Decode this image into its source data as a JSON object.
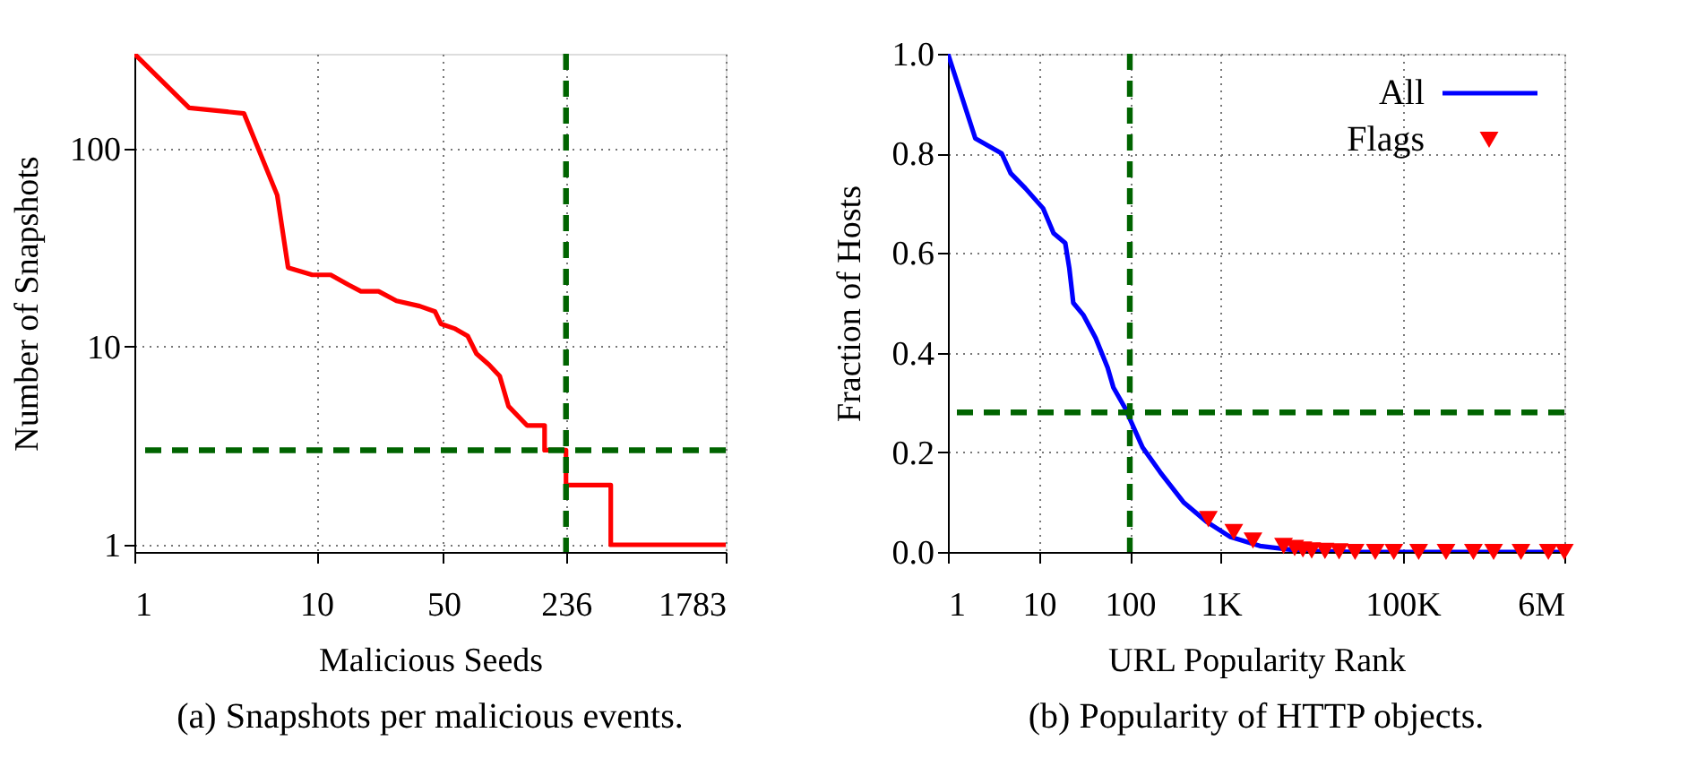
{
  "chart_data": [
    {
      "type": "line",
      "xlabel": "Malicious Seeds",
      "ylabel": "Number of Snapshots",
      "log": "xy",
      "grid": true,
      "xlim": [
        1,
        1783
      ],
      "ylim": [
        0.92,
        300
      ],
      "xticks": [
        1,
        10,
        50,
        236,
        1783
      ],
      "yticks": [
        1,
        10,
        100
      ],
      "series": [
        {
          "color": "#ff0000",
          "x": [
            1,
            2,
            4,
            6.1,
            7,
            9.5,
            12,
            15,
            17.6,
            22,
            27.6,
            37,
            45,
            48.5,
            58,
            68,
            76,
            89,
            102,
            114,
            144,
            180,
            180,
            236,
            236,
            416,
            416,
            1783
          ],
          "values": [
            300,
            160,
            150,
            58,
            25,
            23,
            23,
            20.5,
            19,
            19,
            17,
            16,
            15,
            13,
            12.3,
            11.3,
            9.2,
            8.1,
            7.1,
            5,
            4,
            4,
            3,
            3,
            2,
            2,
            1,
            1
          ]
        }
      ],
      "ref_lines": [
        {
          "axis": "y",
          "value": 3,
          "color": "#006400",
          "line_style": "dashed"
        },
        {
          "axis": "x",
          "value": 236,
          "color": "#006400",
          "line_style": "dashed"
        }
      ],
      "annotations": [
        "(a) Snapshots per malicious events."
      ]
    },
    {
      "type": "line",
      "xlabel": "URL Popularity Rank",
      "ylabel": "Fraction of Hosts",
      "log": "x",
      "grid": true,
      "legend": "top right",
      "xlim": [
        1,
        6000000
      ],
      "ylim": [
        0,
        1
      ],
      "xticks": [
        1,
        10,
        100,
        {
          "value": 1000,
          "label": "1K"
        },
        {
          "value": 100000,
          "label": "100K"
        },
        {
          "value": 6000000,
          "label": "6M"
        }
      ],
      "yticks": [
        {
          "value": 0,
          "label": "0.0"
        },
        {
          "value": 0.2,
          "label": "0.2"
        },
        {
          "value": 0.4,
          "label": "0.4"
        },
        {
          "value": 0.6,
          "label": "0.6"
        },
        {
          "value": 0.8,
          "label": "0.8"
        },
        {
          "value": 1,
          "label": "1.0"
        }
      ],
      "series": [
        {
          "name": "All",
          "color": "#0000ff",
          "x": [
            1,
            2,
            3.9,
            4.9,
            7.1,
            11.1,
            14.5,
            19.5,
            21.6,
            23.9,
            31,
            42,
            57,
            66,
            88,
            138,
            216,
            389,
            708,
            1280,
            2700,
            7600,
            34000,
            6000000
          ],
          "values": [
            1,
            0.83,
            0.8,
            0.76,
            0.73,
            0.69,
            0.64,
            0.62,
            0.57,
            0.5,
            0.475,
            0.43,
            0.37,
            0.33,
            0.29,
            0.21,
            0.16,
            0.1,
            0.06,
            0.03,
            0.012,
            0.002,
            0,
            0
          ]
        },
        {
          "name": "Flags",
          "type": "scatter",
          "marker": "triangle",
          "color": "#ff0000",
          "x": [
            730,
            1390,
            2260,
            4900,
            6500,
            8000,
            10000,
            14000,
            20000,
            30000,
            50000,
            80000,
            150000,
            300000,
            600000,
            1000000,
            2000000,
            4000000,
            6000000
          ],
          "values": [
            0.066,
            0.04,
            0.023,
            0.012,
            0.008,
            0.005,
            0.003,
            0.002,
            0.001,
            0,
            0,
            0,
            0,
            0,
            0,
            0,
            0,
            0,
            0
          ]
        }
      ],
      "ref_lines": [
        {
          "axis": "y",
          "value": 0.28,
          "color": "#006400",
          "line_style": "dashed"
        },
        {
          "axis": "x",
          "value": 100,
          "color": "#006400",
          "line_style": "dashed"
        }
      ],
      "annotations": [
        "(b) Popularity of HTTP objects."
      ]
    }
  ]
}
